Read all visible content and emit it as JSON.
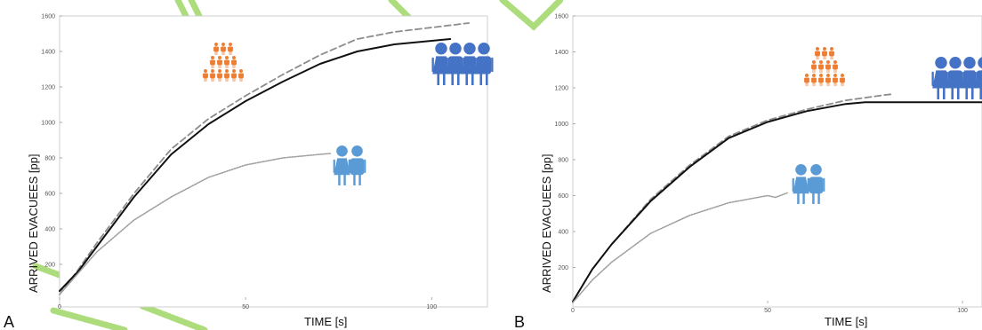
{
  "colors": {
    "orange": "#ED7D31",
    "dark_blue": "#4472C4",
    "light_blue": "#5B9BD5",
    "green_watermark": "#92D050",
    "solid_line": "#111111",
    "dashed_line": "#8c8c8c",
    "dotted_line": "#a0a0a0"
  },
  "chart_data": [
    {
      "type": "line",
      "panel_label": "A",
      "xlabel": "TIME [s]",
      "ylabel": "ARRIVED EVACUEES [pp]",
      "xlim": [
        0,
        115
      ],
      "ylim": [
        0,
        1600
      ],
      "xticks": [
        "0",
        "50",
        "100"
      ],
      "yticks": [
        "200",
        "400",
        "600",
        "800",
        "1000",
        "1200",
        "1400",
        "1600"
      ],
      "series": [
        {
          "style": "dashed",
          "x": [
            0,
            5,
            10,
            20,
            30,
            40,
            50,
            60,
            70,
            80,
            90,
            100,
            110
          ],
          "values": [
            30,
            170,
            320,
            600,
            850,
            1020,
            1150,
            1270,
            1380,
            1470,
            1510,
            1535,
            1560
          ]
        },
        {
          "style": "solid",
          "x": [
            0,
            5,
            10,
            20,
            30,
            40,
            50,
            60,
            70,
            80,
            90,
            100,
            105
          ],
          "values": [
            50,
            160,
            300,
            580,
            820,
            990,
            1120,
            1230,
            1330,
            1400,
            1440,
            1460,
            1470
          ]
        },
        {
          "style": "dotted",
          "x": [
            0,
            5,
            10,
            20,
            30,
            40,
            50,
            60,
            70,
            73
          ],
          "values": [
            30,
            150,
            270,
            450,
            580,
            690,
            760,
            800,
            820,
            825
          ]
        }
      ]
    },
    {
      "type": "line",
      "panel_label": "B",
      "xlabel": "TIME [s]",
      "ylabel": "ARRIVED EVACUEES [pp]",
      "xlim": [
        0,
        105
      ],
      "ylim": [
        0,
        1600
      ],
      "xticks": [
        "0",
        "50",
        "100"
      ],
      "yticks": [
        "200",
        "400",
        "600",
        "800",
        "1000",
        "1200",
        "1400",
        "1600"
      ],
      "series": [
        {
          "style": "dashed",
          "x": [
            0,
            5,
            10,
            20,
            30,
            40,
            50,
            60,
            70,
            80,
            82
          ],
          "values": [
            10,
            190,
            330,
            580,
            770,
            930,
            1020,
            1080,
            1130,
            1160,
            1165
          ]
        },
        {
          "style": "solid",
          "x": [
            0,
            5,
            10,
            20,
            30,
            40,
            50,
            60,
            70,
            75,
            105
          ],
          "values": [
            10,
            190,
            330,
            570,
            760,
            920,
            1010,
            1070,
            1110,
            1120,
            1120
          ]
        },
        {
          "style": "dotted",
          "x": [
            0,
            5,
            10,
            20,
            30,
            40,
            50,
            52,
            55
          ],
          "values": [
            5,
            130,
            230,
            390,
            490,
            560,
            600,
            590,
            615
          ]
        }
      ]
    }
  ]
}
